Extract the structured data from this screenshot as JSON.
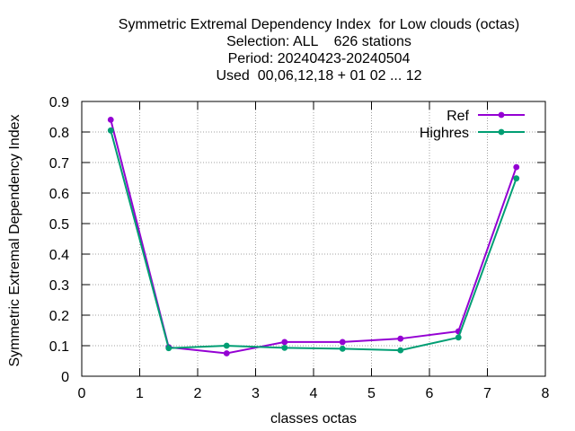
{
  "chart_data": {
    "type": "line",
    "title": [
      "Symmetric Extremal Dependency Index  for Low clouds (octas)",
      "Selection: ALL    626 stations",
      "Period: 20240423-20240504",
      "Used  00,06,12,18 + 01 02 ... 12"
    ],
    "xlabel": "classes octas",
    "ylabel": "Symmetric Extremal Dependency Index",
    "xlim": [
      0,
      8
    ],
    "ylim": [
      0,
      0.9
    ],
    "xticks": [
      "0",
      "1",
      "2",
      "3",
      "4",
      "5",
      "6",
      "7",
      "8"
    ],
    "yticks": [
      "0",
      "0.1",
      "0.2",
      "0.3",
      "0.4",
      "0.5",
      "0.6",
      "0.7",
      "0.8",
      "0.9"
    ],
    "x": [
      0.5,
      1.5,
      2.5,
      3.5,
      4.5,
      5.5,
      6.5,
      7.5
    ],
    "grid": true,
    "legend_position": "top-right",
    "series": [
      {
        "name": "Ref",
        "color": "#9400d3",
        "values": [
          0.84,
          0.095,
          0.075,
          0.112,
          0.112,
          0.123,
          0.147,
          0.685
        ]
      },
      {
        "name": "Highres",
        "color": "#009e73",
        "values": [
          0.805,
          0.092,
          0.1,
          0.093,
          0.09,
          0.085,
          0.127,
          0.648
        ]
      }
    ]
  }
}
